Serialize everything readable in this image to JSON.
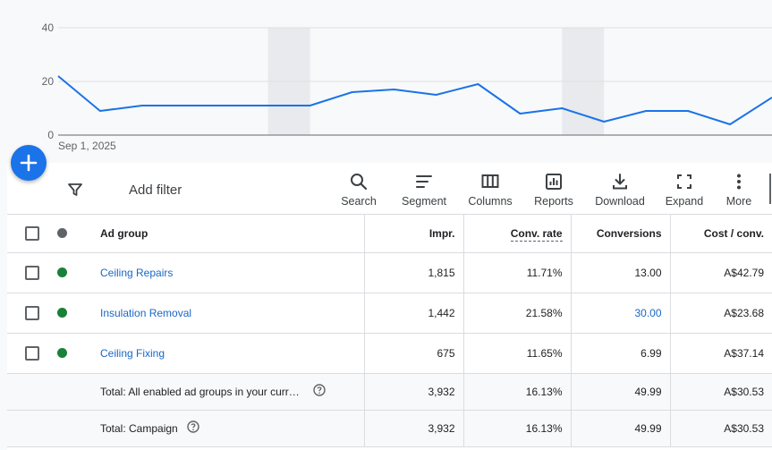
{
  "chart_data": {
    "type": "line",
    "x_start_label": "Sep 1, 2025",
    "y_ticks": [
      "0",
      "20",
      "40"
    ],
    "ylim": [
      0,
      40
    ],
    "grid": true,
    "series_color": "#1a73e8",
    "values": [
      22,
      9,
      11,
      11,
      11,
      11,
      11,
      16,
      17,
      15,
      19,
      8,
      10,
      5,
      9,
      9,
      4,
      14
    ],
    "weekend_shading": [
      [
        5,
        6
      ],
      [
        12,
        13
      ]
    ]
  },
  "fab": {
    "icon": "plus-icon"
  },
  "toolbar": {
    "add_filter_label": "Add filter",
    "tools": [
      {
        "key": "search",
        "label": "Search",
        "icon": "search-icon"
      },
      {
        "key": "segment",
        "label": "Segment",
        "icon": "segment-icon"
      },
      {
        "key": "columns",
        "label": "Columns",
        "icon": "columns-icon"
      },
      {
        "key": "reports",
        "label": "Reports",
        "icon": "reports-icon"
      },
      {
        "key": "download",
        "label": "Download",
        "icon": "download-icon"
      },
      {
        "key": "expand",
        "label": "Expand",
        "icon": "expand-icon"
      },
      {
        "key": "more",
        "label": "More",
        "icon": "more-vert-icon"
      }
    ]
  },
  "table": {
    "headers": {
      "ad_group": "Ad group",
      "impr": "Impr.",
      "conv_rate": "Conv. rate",
      "conversions": "Conversions",
      "cost_conv": "Cost / conv."
    },
    "rows": [
      {
        "name": "Ceiling Repairs",
        "status_color": "#188038",
        "impr": "1,815",
        "conv_rate": "11.71%",
        "conversions": "13.00",
        "cost_conv": "A$42.79"
      },
      {
        "name": "Insulation Removal",
        "status_color": "#188038",
        "impr": "1,442",
        "conv_rate": "21.58%",
        "conversions": "30.00",
        "cost_conv": "A$23.68"
      },
      {
        "name": "Ceiling Fixing",
        "status_color": "#188038",
        "impr": "675",
        "conv_rate": "11.65%",
        "conversions": "6.99",
        "cost_conv": "A$37.14"
      }
    ],
    "totals": [
      {
        "label": "Total: All enabled ad groups in your curre…",
        "impr": "3,932",
        "conv_rate": "16.13%",
        "conversions": "49.99",
        "cost_conv": "A$30.53"
      },
      {
        "label": "Total: Campaign",
        "impr": "3,932",
        "conv_rate": "16.13%",
        "conversions": "49.99",
        "cost_conv": "A$30.53"
      }
    ]
  }
}
